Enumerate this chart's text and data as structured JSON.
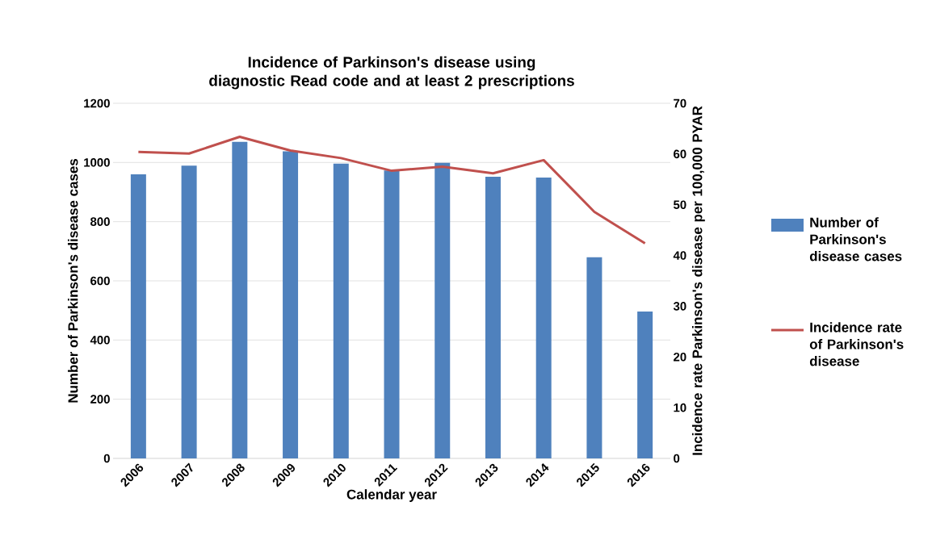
{
  "chart_data": {
    "type": "bar",
    "title": "Incidence of Parkinson's disease using diagnostic Read code and at least 2 prescriptions",
    "xlabel": "Calendar year",
    "ylabel": "Number of Parkinson's disease cases",
    "y2label": "Incidence rate Parkinson's disease per 100,000 PYAR",
    "categories": [
      "2006",
      "2007",
      "2008",
      "2009",
      "2010",
      "2011",
      "2012",
      "2013",
      "2014",
      "2015",
      "2016"
    ],
    "series": [
      {
        "name": "Number of Parkinson's disease cases",
        "color": "#4f81bd",
        "values": [
          960,
          989,
          1070,
          1038,
          996,
          973,
          999,
          952,
          949,
          680,
          496
        ]
      },
      {
        "name": "Incidence rate of Parkinson's disease",
        "type": "line",
        "axis": "y2",
        "color": "#c0504d",
        "values": [
          60.4,
          60.1,
          63.4,
          60.7,
          59.2,
          56.7,
          57.5,
          56.2,
          58.8,
          48.6,
          42.4
        ]
      }
    ],
    "ylim": [
      0,
      1200
    ],
    "yticks": [
      0,
      200,
      400,
      600,
      800,
      1000,
      1200
    ],
    "y2lim": [
      0,
      70
    ],
    "y2ticks": [
      0,
      10,
      20,
      30,
      40,
      50,
      60,
      70
    ],
    "grid": "y",
    "legend": "right",
    "marker": "none",
    "line_style": "solid"
  }
}
